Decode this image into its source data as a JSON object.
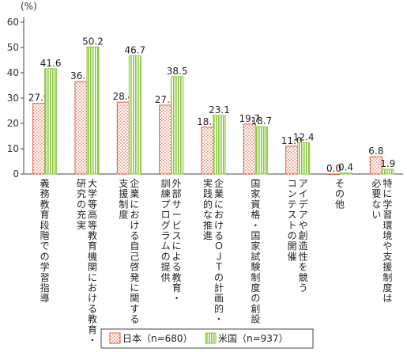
{
  "chart_data": {
    "type": "bar",
    "unit_label": "(%)",
    "ylim": [
      0,
      60
    ],
    "yticks": [
      "0",
      "10",
      "20",
      "30",
      "40",
      "50",
      "60"
    ],
    "grid": false,
    "legend_position": "bottom-center",
    "categories": [
      [
        "義務教育段階での学習指導"
      ],
      [
        "大学等高等教育機関における教育・",
        "研究の充実"
      ],
      [
        "企業における自己啓発に関する",
        "支援制度"
      ],
      [
        "外部サービスによる教育・",
        "訓練プログラムの提供"
      ],
      [
        "企業におけるＯＪＴの計画的・",
        "実践的な推進"
      ],
      [
        "国家資格・国家試験制度の創設"
      ],
      [
        "アイデアや創造性を競う",
        "コンテストの開催"
      ],
      [
        "その他"
      ],
      [
        "特に学習環境や支援制度は",
        "必要ない"
      ]
    ],
    "series": [
      {
        "name": "日本（n=680）",
        "values": [
          27.9,
          36.5,
          28.4,
          27.2,
          18.5,
          19.7,
          11.0,
          0.0,
          6.8
        ],
        "labels": [
          "27.9",
          "36.5",
          "28.4",
          "27.2",
          "18.5",
          "19.7",
          "11.0",
          "0.0",
          "6.8"
        ],
        "color": "#e05a3c",
        "pattern": "dotted"
      },
      {
        "name": "米国（n=937）",
        "values": [
          41.6,
          50.2,
          46.7,
          38.5,
          23.1,
          18.7,
          12.4,
          0.4,
          1.9
        ],
        "labels": [
          "41.6",
          "50.2",
          "46.7",
          "38.5",
          "23.1",
          "18.7",
          "12.4",
          "0.4",
          "1.9"
        ],
        "color": "#8cc63f",
        "pattern": "vertical-stripes"
      }
    ]
  }
}
